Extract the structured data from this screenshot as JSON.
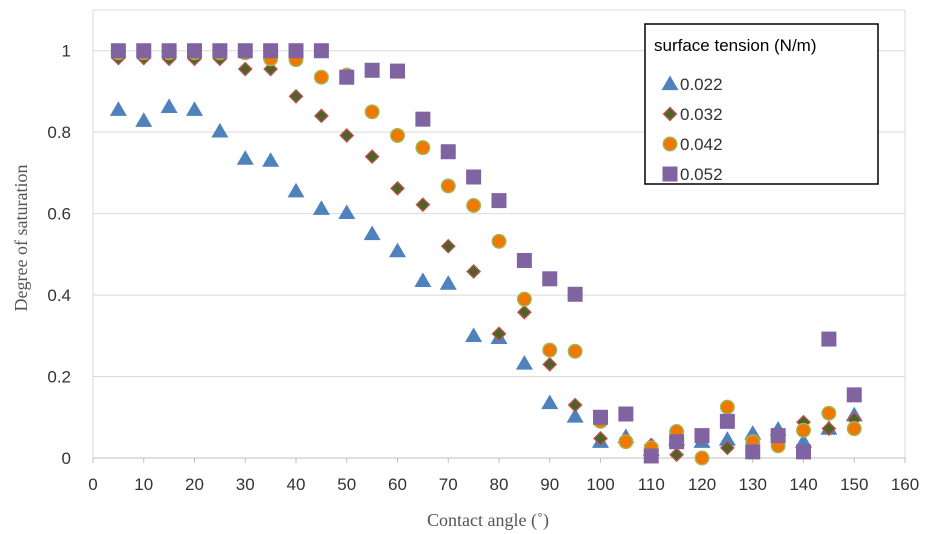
{
  "chart_data": {
    "type": "scatter",
    "title": "",
    "xlabel": "Contact angle (˚)",
    "ylabel": "Degree of saturation",
    "xlim": [
      0,
      160
    ],
    "ylim": [
      0,
      1.1
    ],
    "xticks": [
      0,
      10,
      20,
      30,
      40,
      50,
      60,
      70,
      80,
      90,
      100,
      110,
      120,
      130,
      140,
      150,
      160
    ],
    "yticks": [
      0,
      0.2,
      0.4,
      0.6,
      0.8,
      1
    ],
    "ytick_labels": [
      "0",
      "0.2",
      "0.4",
      "0.6",
      "0.8",
      "1"
    ],
    "grid": "horizontal",
    "legend": {
      "title": "surface tension (N/m)",
      "placement": "top-right"
    },
    "series": [
      {
        "name": "0.022",
        "marker": "triangle",
        "color": "#4f81bd",
        "x": [
          5,
          10,
          15,
          20,
          25,
          30,
          35,
          40,
          45,
          50,
          55,
          60,
          65,
          70,
          75,
          80,
          85,
          90,
          95,
          100,
          105,
          110,
          115,
          120,
          125,
          130,
          135,
          140,
          145,
          150
        ],
        "y": [
          0.855,
          0.828,
          0.862,
          0.855,
          0.802,
          0.735,
          0.73,
          0.655,
          0.612,
          0.602,
          0.55,
          0.508,
          0.435,
          0.428,
          0.3,
          0.295,
          0.232,
          0.135,
          0.102,
          0.04,
          0.052,
          0.02,
          0.045,
          0.04,
          0.045,
          0.06,
          0.07,
          0.04,
          0.072,
          0.105
        ]
      },
      {
        "name": "0.032",
        "marker": "diamond",
        "color": "#4f6228",
        "stroke": "#c0504d",
        "x": [
          5,
          10,
          15,
          20,
          25,
          30,
          35,
          40,
          45,
          50,
          55,
          60,
          65,
          70,
          75,
          80,
          85,
          90,
          95,
          100,
          105,
          110,
          115,
          120,
          125,
          130,
          135,
          140,
          145,
          150
        ],
        "y": [
          0.982,
          0.982,
          0.98,
          0.98,
          0.98,
          0.955,
          0.955,
          0.888,
          0.84,
          0.792,
          0.74,
          0.662,
          0.622,
          0.52,
          0.458,
          0.305,
          0.358,
          0.23,
          0.13,
          0.048,
          0.045,
          0.032,
          0.008,
          0.05,
          0.025,
          0.02,
          0.05,
          0.088,
          0.072,
          0.095
        ]
      },
      {
        "name": "0.042",
        "marker": "circle",
        "color": "#f07800",
        "stroke": "#9bbb59",
        "x": [
          5,
          10,
          15,
          20,
          25,
          30,
          35,
          40,
          45,
          50,
          55,
          60,
          65,
          70,
          75,
          80,
          85,
          90,
          95,
          100,
          105,
          110,
          115,
          120,
          125,
          130,
          135,
          140,
          145,
          150
        ],
        "y": [
          0.995,
          0.995,
          0.995,
          0.995,
          0.995,
          0.995,
          0.98,
          0.978,
          0.935,
          0.94,
          0.85,
          0.792,
          0.762,
          0.668,
          0.62,
          0.532,
          0.39,
          0.265,
          0.262,
          0.09,
          0.04,
          0.025,
          0.065,
          0.0,
          0.125,
          0.04,
          0.03,
          0.068,
          0.11,
          0.072
        ]
      },
      {
        "name": "0.052",
        "marker": "square",
        "color": "#8064a2",
        "x": [
          5,
          10,
          15,
          20,
          25,
          30,
          35,
          40,
          45,
          50,
          55,
          60,
          65,
          70,
          75,
          80,
          85,
          90,
          95,
          100,
          105,
          110,
          115,
          120,
          125,
          130,
          135,
          140,
          145,
          150
        ],
        "y": [
          1.0,
          1.0,
          1.0,
          1.0,
          1.0,
          1.0,
          1.0,
          1.0,
          1.0,
          0.935,
          0.952,
          0.95,
          0.832,
          0.752,
          0.69,
          0.632,
          0.485,
          0.44,
          0.402,
          0.1,
          0.108,
          0.005,
          0.04,
          0.055,
          0.09,
          0.015,
          0.055,
          0.015,
          0.292,
          0.155
        ]
      }
    ]
  }
}
